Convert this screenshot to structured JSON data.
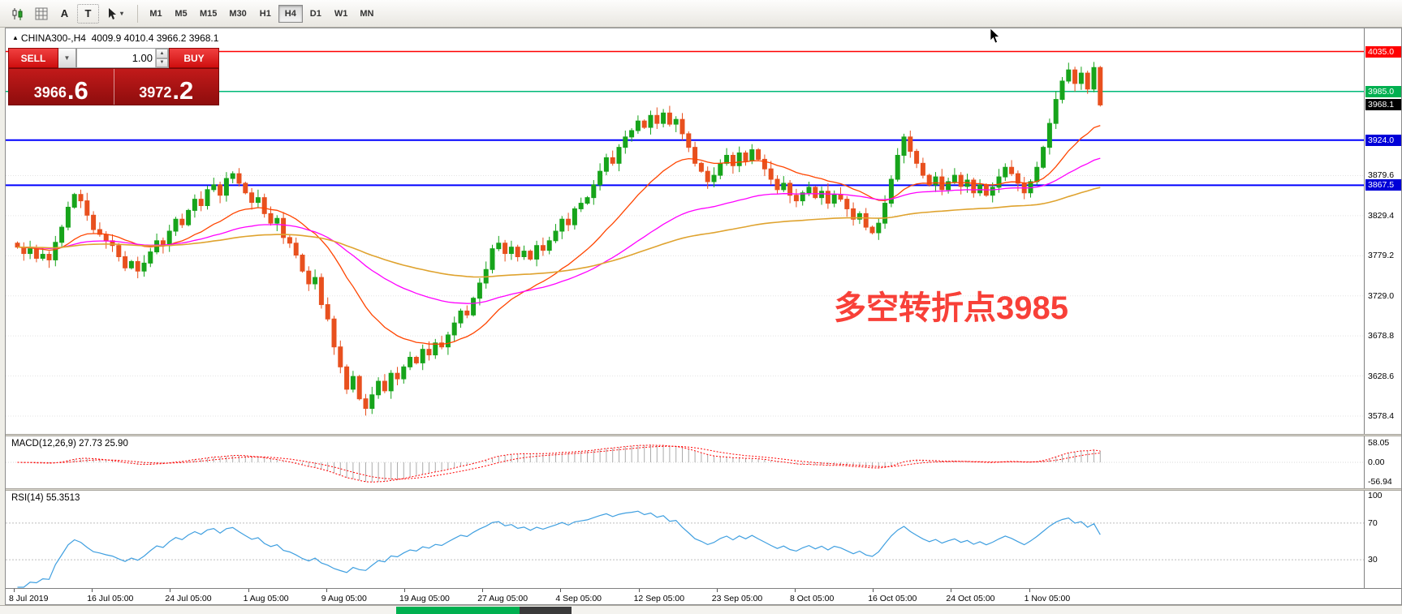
{
  "toolbar": {
    "text_tool_glyph": "A",
    "label_tool_glyph": "T",
    "timeframes": [
      {
        "label": "M1",
        "active": false
      },
      {
        "label": "M5",
        "active": false
      },
      {
        "label": "M15",
        "active": false
      },
      {
        "label": "M30",
        "active": false
      },
      {
        "label": "H1",
        "active": false
      },
      {
        "label": "H4",
        "active": true
      },
      {
        "label": "D1",
        "active": false
      },
      {
        "label": "W1",
        "active": false
      },
      {
        "label": "MN",
        "active": false
      }
    ]
  },
  "header": {
    "collapse_marker": "▲",
    "symbol": "CHINA300-,H4",
    "quote": "4009.9 4010.4 3966.2 3968.1"
  },
  "trade_panel": {
    "sell_label": "SELL",
    "buy_label": "BUY",
    "volume": "1.00",
    "sell_price_main": "3966",
    "sell_price_big": ".6",
    "buy_price_main": "3972",
    "buy_price_big": ".2"
  },
  "annotation": {
    "text": "多空转折点3985",
    "color": "#f84038"
  },
  "chart_data": {
    "type": "candlestick",
    "symbol": "CHINA300-",
    "timeframe": "H4",
    "ohlc_current": {
      "open": 4009.9,
      "high": 4010.4,
      "low": 3966.2,
      "close": 3968.1
    },
    "ylim": [
      3556,
      4064
    ],
    "grid_prices": [
      3879.6,
      3829.4,
      3779.2,
      3729.0,
      3678.8,
      3628.6,
      3578.4
    ],
    "grid_labels": [
      "3879.6",
      "3829.4",
      "3779.2",
      "3729.0",
      "3678.8",
      "3628.6",
      "3578.4"
    ],
    "levels": [
      {
        "price": 4035.0,
        "label": "4035.0",
        "color": "#ff0000",
        "label_bg": "#ff0000",
        "lw": 1.5
      },
      {
        "price": 3985.0,
        "label": "3985.0",
        "color": "#00b877",
        "label_bg": "#00b050",
        "lw": 1.5
      },
      {
        "price": 3924.0,
        "label": "3924.0",
        "color": "#0000ff",
        "label_bg": "#0000d8",
        "lw": 2
      },
      {
        "price": 3867.5,
        "label": "3867.5",
        "color": "#0000ff",
        "label_bg": "#0000d8",
        "lw": 2
      }
    ],
    "current_price": {
      "value": 3968.1,
      "label": "3968.1",
      "bg": "#000000"
    },
    "first_open": 3795,
    "closes": [
      3790,
      3782,
      3788,
      3776,
      3781,
      3774,
      3796,
      3815,
      3840,
      3856,
      3848,
      3830,
      3812,
      3806,
      3798,
      3792,
      3778,
      3764,
      3772,
      3760,
      3770,
      3784,
      3798,
      3792,
      3810,
      3825,
      3818,
      3836,
      3850,
      3842,
      3862,
      3868,
      3855,
      3876,
      3882,
      3870,
      3858,
      3846,
      3852,
      3832,
      3820,
      3826,
      3802,
      3795,
      3780,
      3760,
      3744,
      3752,
      3718,
      3700,
      3665,
      3640,
      3612,
      3628,
      3600,
      3588,
      3605,
      3622,
      3610,
      3632,
      3625,
      3640,
      3652,
      3645,
      3662,
      3655,
      3670,
      3665,
      3680,
      3695,
      3710,
      3705,
      3726,
      3745,
      3762,
      3788,
      3795,
      3782,
      3790,
      3778,
      3785,
      3775,
      3792,
      3786,
      3798,
      3810,
      3825,
      3818,
      3838,
      3845,
      3852,
      3868,
      3885,
      3902,
      3895,
      3915,
      3928,
      3936,
      3948,
      3940,
      3955,
      3945,
      3958,
      3944,
      3950,
      3932,
      3915,
      3895,
      3885,
      3872,
      3880,
      3895,
      3905,
      3892,
      3908,
      3898,
      3912,
      3900,
      3888,
      3875,
      3862,
      3870,
      3855,
      3848,
      3858,
      3865,
      3852,
      3860,
      3845,
      3856,
      3850,
      3838,
      3825,
      3832,
      3815,
      3808,
      3820,
      3845,
      3875,
      3905,
      3928,
      3910,
      3895,
      3880,
      3868,
      3878,
      3862,
      3872,
      3880,
      3866,
      3874,
      3858,
      3868,
      3855,
      3865,
      3878,
      3890,
      3882,
      3870,
      3858,
      3872,
      3890,
      3915,
      3945,
      3975,
      3998,
      4012,
      3995,
      4008,
      3988,
      4015,
      3968.1
    ],
    "up_color": "#17a41b",
    "down_color": "#e8501e",
    "ma_fast": {
      "period": 21,
      "color": "#ff4500"
    },
    "ma_mid": {
      "period": 55,
      "color": "#ff00ff"
    },
    "ma_slow": {
      "period": 120,
      "color": "#dfa32f"
    },
    "macd": {
      "label": "MACD(12,26,9) 27.73 25.90",
      "fast": 12,
      "slow": 26,
      "signal": 9,
      "axis": [
        58.05,
        0.0,
        -56.94
      ],
      "axis_labels": [
        "58.05",
        "0.00",
        "-56.94"
      ],
      "line_color": "#ff0000",
      "hist_color": "#ababab"
    },
    "rsi": {
      "label": "RSI(14) 55.3513",
      "period": 14,
      "axis": [
        100,
        70,
        30
      ],
      "axis_labels": [
        "100",
        "70",
        "30"
      ],
      "color": "#3f9fe0"
    },
    "time_labels": [
      "8 Jul 2019",
      "16 Jul 05:00",
      "24 Jul 05:00",
      "1 Aug 05:00",
      "9 Aug 05:00",
      "19 Aug 05:00",
      "27 Aug 05:00",
      "4 Sep 05:00",
      "12 Sep 05:00",
      "23 Sep 05:00",
      "8 Oct 05:00",
      "16 Oct 05:00",
      "24 Oct 05:00",
      "1 Nov 05:00"
    ]
  }
}
